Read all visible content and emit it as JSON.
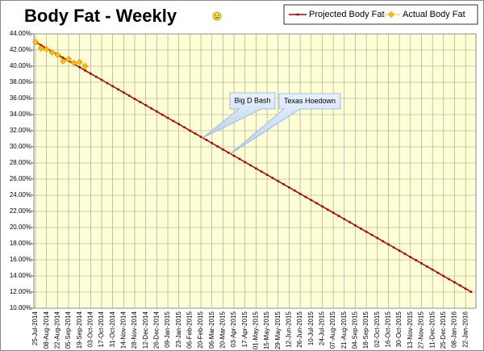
{
  "chart_data": {
    "type": "line",
    "title": "Body Fat - Weekly",
    "categories": [
      "25-Jul-2014",
      null,
      "08-Aug-2014",
      null,
      "22-Aug-2014",
      null,
      "05-Sep-2014",
      null,
      "19-Sep-2014",
      null,
      "03-Oct-2014",
      null,
      "17-Oct-2014",
      null,
      "31-Oct-2014",
      null,
      "14-Nov-2014",
      null,
      "28-Nov-2014",
      null,
      "12-Dec-2014",
      null,
      "26-Dec-2014",
      null,
      "09-Jan-2015",
      null,
      "23-Jan-2015",
      null,
      "06-Feb-2015",
      null,
      "20-Feb-2015",
      null,
      "06-Mar-2015",
      null,
      "20-Mar-2015",
      null,
      "03-Apr-2015",
      null,
      "17-Apr-2015",
      null,
      "01-May-2015",
      null,
      "15-May-2015",
      null,
      "29-May-2015",
      null,
      "12-Jun-2015",
      null,
      "26-Jun-2015",
      null,
      "10-Jul-2015",
      null,
      "24-Jul-2015",
      null,
      "07-Aug-2015",
      null,
      "21-Aug-2015",
      null,
      "04-Sep-2015",
      null,
      "18-Sep-2015",
      null,
      "02-Oct-2015",
      null,
      "16-Oct-2015",
      null,
      "30-Oct-2015",
      null,
      "13-Nov-2015",
      null,
      "27-Nov-2015",
      null,
      "11-Dec-2015",
      null,
      "25-Dec-2015",
      null,
      "08-Jan-2016",
      null,
      "22-Jan-2016",
      null
    ],
    "series": [
      {
        "name": "Projected Body Fat",
        "color": "#b00000",
        "values": [
          43.0,
          42.61,
          42.22,
          41.82,
          41.43,
          41.04,
          40.65,
          40.26,
          39.86,
          39.47,
          39.08,
          38.69,
          38.3,
          37.9,
          37.51,
          37.12,
          36.73,
          36.34,
          35.94,
          35.55,
          35.16,
          34.77,
          34.38,
          33.98,
          33.59,
          33.2,
          32.81,
          32.42,
          32.02,
          31.63,
          31.24,
          30.85,
          30.46,
          30.06,
          29.67,
          29.28,
          28.89,
          28.5,
          28.1,
          27.71,
          27.32,
          26.93,
          26.54,
          26.14,
          25.75,
          25.36,
          24.97,
          24.58,
          24.18,
          23.79,
          23.4,
          23.01,
          22.62,
          22.22,
          21.83,
          21.44,
          21.05,
          20.66,
          20.26,
          19.87,
          19.48,
          19.09,
          18.7,
          18.3,
          17.91,
          17.52,
          17.13,
          16.74,
          16.34,
          15.95,
          15.56,
          15.17,
          14.78,
          14.38,
          13.99,
          13.6,
          13.21,
          12.82,
          12.42,
          12.03
        ]
      },
      {
        "name": "Actual Body Fat",
        "color": "#ffc000",
        "values": [
          43.0,
          42.2,
          42.1,
          41.7,
          41.4,
          40.6,
          40.9,
          40.4,
          40.5,
          40.0,
          null,
          null,
          null,
          null,
          null,
          null,
          null,
          null,
          null,
          null,
          null,
          null,
          null,
          null,
          null,
          null,
          null,
          null,
          null,
          null,
          null,
          null,
          null,
          null,
          null,
          null,
          null,
          null,
          null,
          null,
          null,
          null,
          null,
          null,
          null,
          null,
          null,
          null,
          null,
          null,
          null,
          null,
          null,
          null,
          null,
          null,
          null,
          null,
          null,
          null,
          null,
          null,
          null,
          null,
          null,
          null,
          null,
          null,
          null,
          null,
          null,
          null,
          null,
          null,
          null,
          null,
          null,
          null,
          null,
          null
        ]
      }
    ],
    "ylim": [
      10,
      44
    ],
    "yticks": [
      {
        "value": 10,
        "label": "10.00%"
      },
      {
        "value": 12,
        "label": "12.00%"
      },
      {
        "value": 14,
        "label": "14.00%"
      },
      {
        "value": 16,
        "label": "16.00%"
      },
      {
        "value": 18,
        "label": "18.00%"
      },
      {
        "value": 20,
        "label": "20.00%"
      },
      {
        "value": 22,
        "label": "22.00%"
      },
      {
        "value": 24,
        "label": "24.00%"
      },
      {
        "value": 26,
        "label": "26.00%"
      },
      {
        "value": 28,
        "label": "28.00%"
      },
      {
        "value": 30,
        "label": "30.00%"
      },
      {
        "value": 32,
        "label": "32.00%"
      },
      {
        "value": 34,
        "label": "34.00%"
      },
      {
        "value": 36,
        "label": "36.00%"
      },
      {
        "value": 38,
        "label": "38.00%"
      },
      {
        "value": 40,
        "label": "40.00%"
      },
      {
        "value": 42,
        "label": "42.00%"
      },
      {
        "value": 44,
        "label": "44.00%"
      }
    ],
    "grid": true,
    "legend": "top-right",
    "annotations": [
      "Big D Bash",
      "Texas Hoedown"
    ]
  }
}
